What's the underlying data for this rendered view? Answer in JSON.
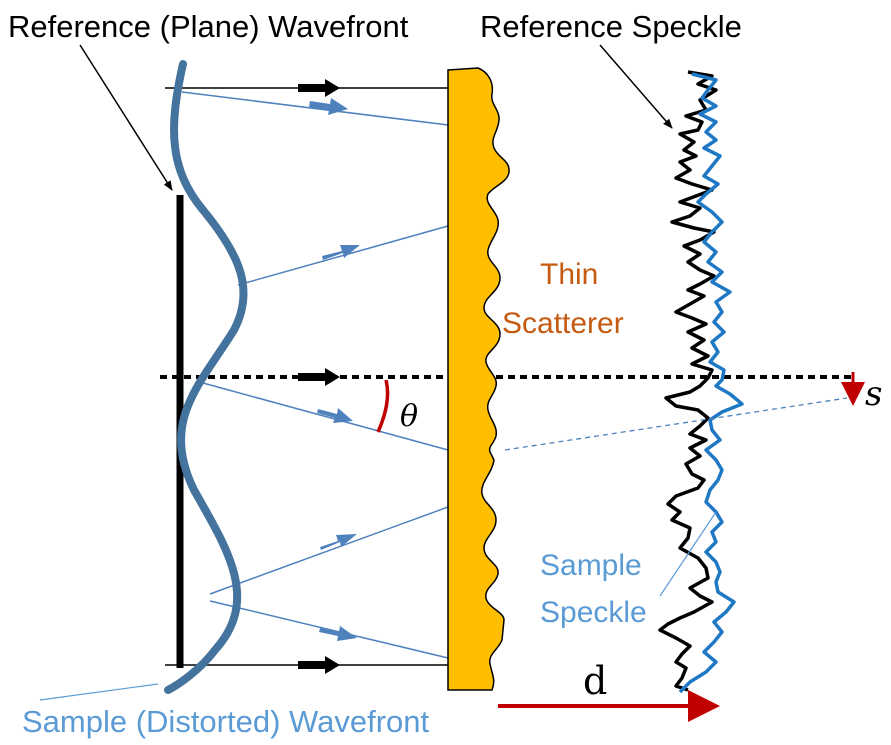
{
  "labels": {
    "reference_wavefront": "Reference (Plane) Wavefront",
    "reference_speckle": "Reference Speckle",
    "thin_scatterer_line1": "Thin",
    "thin_scatterer_line2": "Scatterer",
    "sample_speckle_line1": "Sample",
    "sample_speckle_line2": "Speckle",
    "sample_wavefront": "Sample (Distorted) Wavefront",
    "theta": "θ",
    "shift": "s",
    "distance": "d"
  },
  "colors": {
    "black": "#000000",
    "wavefront_blue": "#44739e",
    "ray_blue": "#4f81bd",
    "speckle_blue": "#1f78c4",
    "scatterer_fill": "#ffbf00",
    "scatterer_text": "#c55a11",
    "annotation_red": "#c00000",
    "label_blue": "#5b9bd5"
  }
}
